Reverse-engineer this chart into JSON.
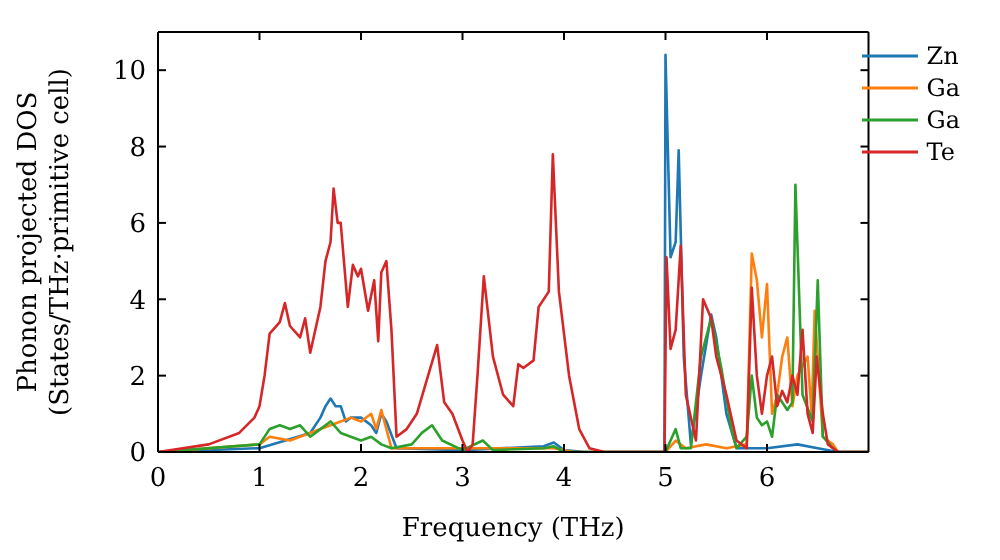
{
  "chart_data": {
    "type": "line",
    "xlabel": "Frequency (THz)",
    "ylabel": "Phonon projected DOS\n(States/THz·primitive cell)",
    "xlim": [
      0,
      7
    ],
    "ylim": [
      0,
      11
    ],
    "xticks": [
      0,
      1,
      2,
      3,
      4,
      5,
      6
    ],
    "yticks": [
      0,
      2,
      4,
      6,
      8,
      10
    ],
    "legend": "top right",
    "grid": false,
    "marker": "none",
    "line_style": "solid",
    "series": [
      {
        "name": "Zn",
        "color": "#1f77b4",
        "x": [
          0,
          1.0,
          1.5,
          1.6,
          1.65,
          1.7,
          1.75,
          1.8,
          1.85,
          1.9,
          2.0,
          2.1,
          2.15,
          2.2,
          2.25,
          2.35,
          3.0,
          3.8,
          3.9,
          4.0,
          4.2,
          4.99,
          5.0,
          5.05,
          5.1,
          5.13,
          5.18,
          5.25,
          5.35,
          5.45,
          5.5,
          5.6,
          5.7,
          6.0,
          6.3,
          6.5,
          6.7,
          7
        ],
        "values": [
          0,
          0.1,
          0.5,
          0.9,
          1.2,
          1.4,
          1.2,
          1.2,
          0.8,
          0.9,
          0.9,
          0.7,
          0.5,
          1.0,
          0.8,
          0.1,
          0.05,
          0.15,
          0.25,
          0.05,
          0,
          0,
          10.4,
          5.1,
          5.5,
          7.9,
          2.5,
          0.2,
          2.0,
          3.6,
          3.0,
          1.0,
          0.1,
          0.1,
          0.2,
          0.1,
          0,
          0
        ]
      },
      {
        "name": "Ga",
        "color": "#ff7f0e",
        "x": [
          0,
          1.0,
          1.1,
          1.3,
          1.5,
          1.6,
          1.7,
          1.8,
          1.9,
          2.0,
          2.1,
          2.15,
          2.2,
          2.3,
          2.6,
          3.9,
          4.1,
          5.0,
          5.1,
          5.2,
          5.4,
          5.6,
          5.8,
          5.85,
          5.9,
          5.95,
          6.0,
          6.05,
          6.1,
          6.15,
          6.2,
          6.25,
          6.3,
          6.4,
          6.44,
          6.47,
          6.55,
          6.65,
          6.7,
          7
        ],
        "values": [
          0,
          0.2,
          0.4,
          0.3,
          0.5,
          0.6,
          0.7,
          0.8,
          0.9,
          0.8,
          1.0,
          0.6,
          1.1,
          0.1,
          0.1,
          0.1,
          0,
          0,
          0.3,
          0.1,
          0.2,
          0.1,
          0.2,
          5.2,
          4.5,
          3.0,
          4.4,
          1.0,
          1.5,
          2.5,
          3.0,
          1.2,
          2.0,
          2.5,
          1.0,
          3.7,
          0.4,
          0.2,
          0,
          0
        ]
      },
      {
        "name": "Ga",
        "color": "#2ca02c",
        "x": [
          0,
          1.0,
          1.1,
          1.2,
          1.3,
          1.4,
          1.5,
          1.6,
          1.7,
          1.8,
          1.9,
          2.0,
          2.1,
          2.2,
          2.3,
          2.5,
          2.6,
          2.7,
          2.8,
          3.0,
          3.2,
          3.3,
          3.8,
          3.9,
          4.0,
          5.0,
          5.05,
          5.1,
          5.15,
          5.25,
          5.35,
          5.45,
          5.55,
          5.65,
          5.7,
          5.8,
          5.85,
          5.9,
          5.95,
          6.0,
          6.05,
          6.1,
          6.2,
          6.25,
          6.28,
          6.35,
          6.45,
          6.5,
          6.55,
          6.65,
          6.7,
          7
        ],
        "values": [
          0,
          0.2,
          0.6,
          0.7,
          0.6,
          0.7,
          0.4,
          0.6,
          0.8,
          0.5,
          0.4,
          0.3,
          0.4,
          0.2,
          0.1,
          0.2,
          0.5,
          0.7,
          0.3,
          0.05,
          0.3,
          0.05,
          0.1,
          0.15,
          0,
          0,
          0.3,
          0.6,
          0.1,
          0.1,
          2.5,
          3.5,
          2.2,
          0.6,
          0.1,
          0.4,
          2.0,
          0.9,
          0.7,
          0.8,
          0.4,
          1.5,
          1.1,
          1.3,
          7.0,
          1.5,
          0.8,
          4.5,
          0.4,
          0.1,
          0,
          0
        ]
      },
      {
        "name": "Te",
        "color": "#d62728",
        "x": [
          0,
          0.5,
          0.8,
          0.95,
          1.0,
          1.05,
          1.1,
          1.2,
          1.25,
          1.3,
          1.4,
          1.45,
          1.5,
          1.6,
          1.65,
          1.7,
          1.73,
          1.77,
          1.8,
          1.87,
          1.92,
          1.97,
          2.0,
          2.07,
          2.13,
          2.17,
          2.2,
          2.25,
          2.3,
          2.35,
          2.45,
          2.55,
          2.65,
          2.75,
          2.82,
          2.9,
          3.0,
          3.05,
          3.1,
          3.15,
          3.21,
          3.3,
          3.4,
          3.5,
          3.55,
          3.6,
          3.7,
          3.75,
          3.85,
          3.89,
          3.95,
          4.05,
          4.15,
          4.25,
          4.4,
          4.99,
          5.01,
          5.05,
          5.1,
          5.15,
          5.2,
          5.3,
          5.37,
          5.45,
          5.5,
          5.6,
          5.7,
          5.8,
          5.85,
          5.9,
          5.95,
          6.0,
          6.05,
          6.1,
          6.15,
          6.2,
          6.25,
          6.3,
          6.35,
          6.4,
          6.45,
          6.49,
          6.55,
          6.6,
          6.7,
          7
        ],
        "values": [
          0,
          0.2,
          0.5,
          0.9,
          1.2,
          2.0,
          3.1,
          3.4,
          3.9,
          3.3,
          3.0,
          3.5,
          2.6,
          3.8,
          5.0,
          5.5,
          6.9,
          6.0,
          6.0,
          3.8,
          4.9,
          4.6,
          4.8,
          3.7,
          4.5,
          2.9,
          4.7,
          5.0,
          3.2,
          0.4,
          0.6,
          1.0,
          1.9,
          2.8,
          1.3,
          1.0,
          0.3,
          0,
          0.2,
          2.1,
          4.6,
          2.5,
          1.5,
          1.2,
          2.3,
          2.2,
          2.4,
          3.8,
          4.2,
          7.8,
          4.2,
          2.0,
          0.6,
          0.1,
          0,
          0,
          5.1,
          2.7,
          3.2,
          5.4,
          1.5,
          0.3,
          4.0,
          3.5,
          2.5,
          1.5,
          0.3,
          0.1,
          4.3,
          2.0,
          1.0,
          2.0,
          2.5,
          1.2,
          1.6,
          1.3,
          2.0,
          1.5,
          3.2,
          1.0,
          0.5,
          2.5,
          1.0,
          0.2,
          0,
          0
        ]
      }
    ]
  }
}
